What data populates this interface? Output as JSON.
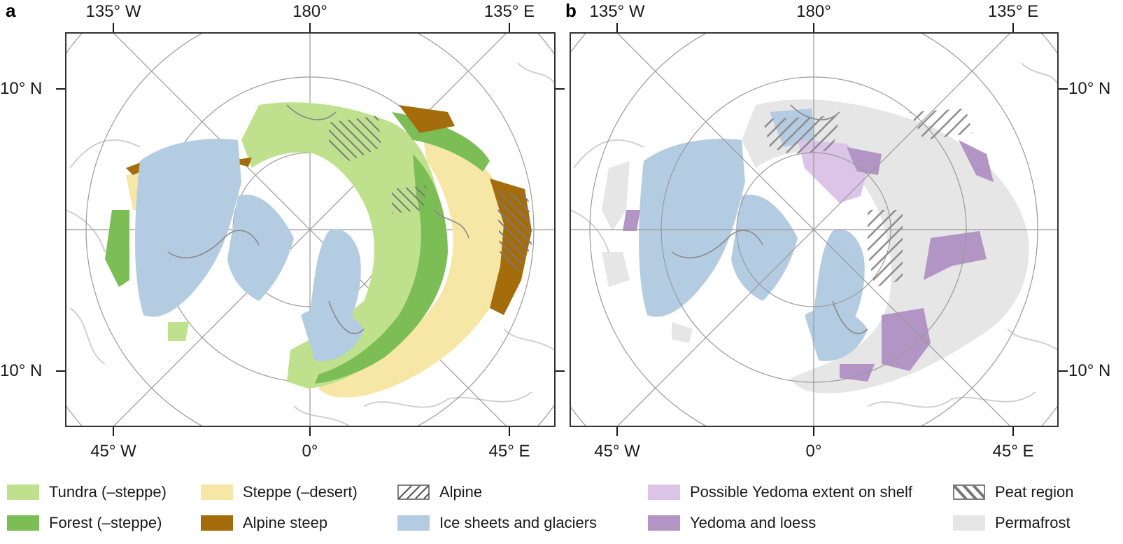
{
  "panels": [
    {
      "letter": "a",
      "top_labels": {
        "left": "135° W",
        "center": "180°",
        "right": "135° E"
      },
      "bottom_labels": {
        "left": "45° W",
        "center": "0°",
        "right": "45° E"
      },
      "lat_labels": {
        "upper": "10° N",
        "lower": "10° N"
      }
    },
    {
      "letter": "b",
      "top_labels": {
        "left": "135° W",
        "center": "180°",
        "right": "135° E"
      },
      "bottom_labels": {
        "left": "45° W",
        "center": "0°",
        "right": "45° E"
      },
      "lat_labels": {
        "upper": "10° N",
        "lower": "10° N"
      }
    }
  ],
  "legend": {
    "tundra": {
      "label": "Tundra (–steppe)",
      "color": "#bfe08c"
    },
    "forest": {
      "label": "Forest (–steppe)",
      "color": "#7cbd55"
    },
    "steppe": {
      "label": "Steppe (–desert)",
      "color": "#f6e7a6"
    },
    "alpine_steep": {
      "label": "Alpine steep",
      "color": "#a56c0c"
    },
    "alpine": {
      "label": "Alpine",
      "pattern": "hatch-forward"
    },
    "ice": {
      "label": "Ice sheets and glaciers",
      "color": "#b4cce2"
    },
    "yedoma_shelf": {
      "label": "Possible Yedoma extent on shelf",
      "color": "#dcc4e8"
    },
    "yedoma_loess": {
      "label": "Yedoma and loess",
      "color": "#b295c4"
    },
    "peat": {
      "label": "Peat region",
      "pattern": "hatch-back"
    },
    "permafrost": {
      "label": "Permafrost",
      "color": "#e6e6e6"
    }
  }
}
